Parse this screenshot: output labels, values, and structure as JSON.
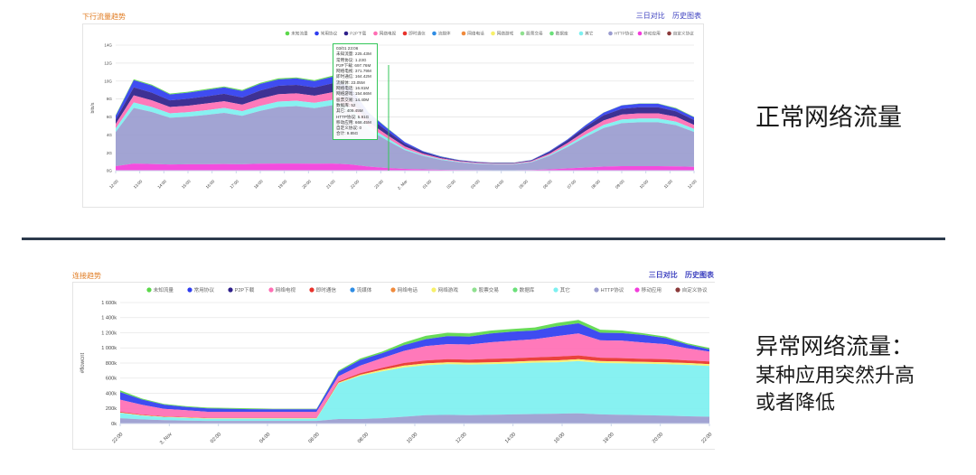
{
  "top": {
    "title": "下行流量趋势",
    "links": [
      "三日对比",
      "历史图表"
    ]
  },
  "bottom": {
    "title": "连接趋势",
    "links": [
      "三日对比",
      "历史图表"
    ]
  },
  "captions": {
    "normal": "正常网络流量",
    "abnormal_l1": "异常网络流量：",
    "abnormal_l2": "某种应用突然升高",
    "abnormal_l3": "或者降低"
  },
  "colors": {
    "未知流量": "#5bd84a",
    "常用协议": "#2f3df0",
    "P2P下载": "#2e1f8a",
    "网络电视": "#ff6eb4",
    "即时通信": "#e8322b",
    "流媒体": "#2f8de4",
    "网络电话": "#f08a3c",
    "网络游戏": "#f7f06a",
    "股票交易": "#8fe08f",
    "数据库": "#6be07a",
    "其它": "#7df0f0",
    "HTTP协议": "#9a9ccf",
    "移动应用": "#f23ddb",
    "自定义协议": "#8b3a3a"
  },
  "tooltip": {
    "lines": [
      "03/01 23:06",
      "未知流量: 225.43M",
      "常用协议: 1.23G",
      "P2P下载: 697.76M",
      "网络电视: 371.79M",
      "即时通信: 164.42M",
      "流媒体: 23.05M",
      "网络电话: 16.81M",
      "网络游戏: 154.66M",
      "股票交易: 14.40M",
      "数据库: 52",
      "其它: 409.45M",
      "HTTP协议: 5.91G",
      "移动应用: 668.45M",
      "自定义协议: 0",
      "合计: 9.85G"
    ]
  },
  "chart_data": [
    {
      "type": "area",
      "title": "下行流量趋势",
      "ylabel": "bits/s",
      "stacked": true,
      "y_ticks": [
        "0G",
        "2G",
        "4G",
        "6G",
        "8G",
        "10G",
        "12G",
        "14G"
      ],
      "ylim": [
        0,
        14
      ],
      "x_ticks": [
        "12:00",
        "13:00",
        "14:00",
        "15:00",
        "16:00",
        "17:00",
        "18:00",
        "19:00",
        "20:00",
        "21:00",
        "22:00",
        "23:00",
        "2. Mar",
        "01:00",
        "02:00",
        "03:00",
        "04:00",
        "05:00",
        "06:00",
        "07:00",
        "08:00",
        "09:00",
        "10:00",
        "11:00",
        "12:00"
      ],
      "legend": [
        "未知流量",
        "常用协议",
        "P2P下载",
        "网络电视",
        "即时通信",
        "流媒体",
        "网络电话",
        "网络游戏",
        "股票交易",
        "数据库",
        "其它",
        "HTTP协议",
        "移动应用",
        "自定义协议"
      ],
      "totals_G": [
        6.2,
        10.2,
        9.6,
        8.6,
        8.8,
        9.1,
        9.4,
        9.0,
        9.8,
        10.3,
        10.4,
        10.1,
        10.6,
        9.4,
        6.5,
        4.8,
        3.2,
        2.2,
        1.6,
        1.2,
        1.0,
        0.9,
        0.9,
        1.2,
        2.2,
        3.5,
        5.1,
        6.5,
        7.3,
        7.5,
        7.5,
        7.0,
        6.0
      ],
      "series": [
        {
          "name": "移动应用",
          "values_G": [
            0.5,
            0.8,
            0.75,
            0.7,
            0.72,
            0.72,
            0.75,
            0.72,
            0.78,
            0.8,
            0.8,
            0.78,
            0.8,
            0.7,
            0.45,
            0.3,
            0.2,
            0.15,
            0.1,
            0.08,
            0.06,
            0.05,
            0.05,
            0.08,
            0.15,
            0.25,
            0.35,
            0.45,
            0.5,
            0.5,
            0.5,
            0.48,
            0.42
          ]
        },
        {
          "name": "HTTP协议",
          "values_G": [
            3.8,
            6.2,
            5.8,
            5.2,
            5.3,
            5.5,
            5.7,
            5.4,
            5.9,
            6.3,
            6.4,
            6.2,
            6.5,
            5.8,
            4.1,
            3.1,
            2.1,
            1.5,
            1.1,
            0.85,
            0.7,
            0.65,
            0.65,
            0.85,
            1.5,
            2.4,
            3.4,
            4.3,
            4.8,
            4.9,
            4.9,
            4.6,
            3.9
          ]
        },
        {
          "name": "其它",
          "values_G": [
            0.4,
            0.6,
            0.55,
            0.5,
            0.5,
            0.52,
            0.55,
            0.52,
            0.55,
            0.6,
            0.6,
            0.58,
            0.6,
            0.55,
            0.35,
            0.25,
            0.15,
            0.1,
            0.08,
            0.06,
            0.05,
            0.05,
            0.05,
            0.06,
            0.1,
            0.18,
            0.28,
            0.35,
            0.4,
            0.42,
            0.42,
            0.38,
            0.33
          ]
        },
        {
          "name": "网络电视",
          "values_G": [
            0.5,
            0.8,
            0.75,
            0.7,
            0.72,
            0.75,
            0.75,
            0.72,
            0.8,
            0.82,
            0.82,
            0.8,
            0.85,
            0.75,
            0.5,
            0.35,
            0.25,
            0.15,
            0.1,
            0.08,
            0.07,
            0.06,
            0.06,
            0.08,
            0.15,
            0.25,
            0.4,
            0.5,
            0.55,
            0.58,
            0.58,
            0.55,
            0.45
          ]
        },
        {
          "name": "P2P下载",
          "values_G": [
            0.5,
            0.9,
            0.85,
            0.75,
            0.78,
            0.8,
            0.82,
            0.8,
            0.9,
            0.95,
            0.95,
            0.92,
            1.0,
            0.85,
            0.6,
            0.45,
            0.3,
            0.18,
            0.12,
            0.08,
            0.07,
            0.06,
            0.06,
            0.08,
            0.18,
            0.3,
            0.45,
            0.58,
            0.65,
            0.68,
            0.68,
            0.62,
            0.55
          ]
        },
        {
          "name": "常用协议",
          "values_G": [
            0.4,
            0.8,
            0.8,
            0.65,
            0.68,
            0.7,
            0.72,
            0.73,
            0.75,
            0.7,
            0.72,
            0.7,
            0.72,
            0.65,
            0.45,
            0.3,
            0.18,
            0.1,
            0.07,
            0.04,
            0.04,
            0.02,
            0.02,
            0.04,
            0.1,
            0.1,
            0.2,
            0.3,
            0.38,
            0.38,
            0.38,
            0.3,
            0.3
          ]
        },
        {
          "name": "未知流量",
          "values_G": [
            0.1,
            0.1,
            0.1,
            0.1,
            0.1,
            0.11,
            0.11,
            0.11,
            0.12,
            0.13,
            0.11,
            0.12,
            0.13,
            0.1,
            0.05,
            0.05,
            0.02,
            0.02,
            0.03,
            0.01,
            0.01,
            0.01,
            0.01,
            0.01,
            0.02,
            0.02,
            0.02,
            0.02,
            0.02,
            0.04,
            0.04,
            0.07,
            0.05
          ]
        }
      ]
    },
    {
      "type": "area",
      "title": "连接趋势",
      "ylabel": "#flowcnt",
      "stacked": true,
      "y_ticks": [
        "0k",
        "200k",
        "400k",
        "600k",
        "800k",
        "1 000k",
        "1 200k",
        "1 400k",
        "1 600k"
      ],
      "ylim": [
        0,
        1600
      ],
      "x_ticks": [
        "22:00",
        "3. Nov",
        "02:00",
        "04:00",
        "06:00",
        "08:00",
        "10:00",
        "12:00",
        "14:00",
        "16:00",
        "18:00",
        "20:00",
        "22:00"
      ],
      "legend": [
        "未知流量",
        "常用协议",
        "P2P下载",
        "网络电视",
        "即时通信",
        "流媒体",
        "网络电话",
        "网络游戏",
        "股票交易",
        "数据库",
        "其它",
        "HTTP协议",
        "移动应用",
        "自定义协议"
      ],
      "totals_k": [
        440,
        330,
        260,
        230,
        210,
        205,
        200,
        195,
        195,
        195,
        700,
        860,
        950,
        1070,
        1160,
        1200,
        1190,
        1230,
        1250,
        1270,
        1330,
        1370,
        1240,
        1230,
        1190,
        1150,
        1060,
        1000
      ],
      "series": [
        {
          "name": "HTTP协议",
          "values_k": [
            70,
            55,
            45,
            40,
            35,
            35,
            35,
            35,
            35,
            35,
            60,
            60,
            70,
            90,
            110,
            115,
            110,
            115,
            120,
            125,
            130,
            135,
            120,
            115,
            110,
            105,
            95,
            90
          ]
        },
        {
          "name": "其它",
          "values_k": [
            70,
            50,
            40,
            35,
            30,
            30,
            30,
            30,
            30,
            30,
            470,
            570,
            620,
            650,
            660,
            670,
            670,
            670,
            670,
            680,
            680,
            690,
            680,
            680,
            680,
            680,
            680,
            670
          ]
        },
        {
          "name": "网络游戏",
          "values_k": [
            5,
            5,
            5,
            5,
            5,
            5,
            5,
            5,
            5,
            5,
            10,
            15,
            20,
            25,
            25,
            25,
            25,
            25,
            25,
            25,
            25,
            25,
            25,
            25,
            25,
            25,
            25,
            25
          ]
        },
        {
          "name": "即时通信",
          "values_k": [
            10,
            8,
            5,
            5,
            5,
            5,
            5,
            5,
            5,
            5,
            15,
            20,
            25,
            35,
            40,
            40,
            40,
            45,
            45,
            45,
            50,
            50,
            45,
            45,
            40,
            40,
            35,
            35
          ]
        },
        {
          "name": "网络电视",
          "values_k": [
            160,
            130,
            100,
            90,
            80,
            80,
            80,
            80,
            80,
            80,
            70,
            100,
            130,
            160,
            190,
            200,
            200,
            220,
            230,
            240,
            270,
            290,
            230,
            230,
            215,
            200,
            160,
            130
          ]
        },
        {
          "name": "常用协议",
          "values_k": [
            100,
            70,
            55,
            45,
            45,
            40,
            35,
            32,
            32,
            32,
            60,
            75,
            65,
            75,
            90,
            105,
            105,
            115,
            120,
            115,
            130,
            135,
            100,
            100,
            100,
            80,
            50,
            30
          ]
        },
        {
          "name": "未知流量",
          "values_k": [
            25,
            12,
            10,
            10,
            10,
            10,
            10,
            8,
            8,
            8,
            15,
            20,
            20,
            35,
            45,
            45,
            40,
            40,
            35,
            40,
            45,
            45,
            40,
            35,
            20,
            20,
            15,
            20
          ]
        }
      ]
    }
  ]
}
